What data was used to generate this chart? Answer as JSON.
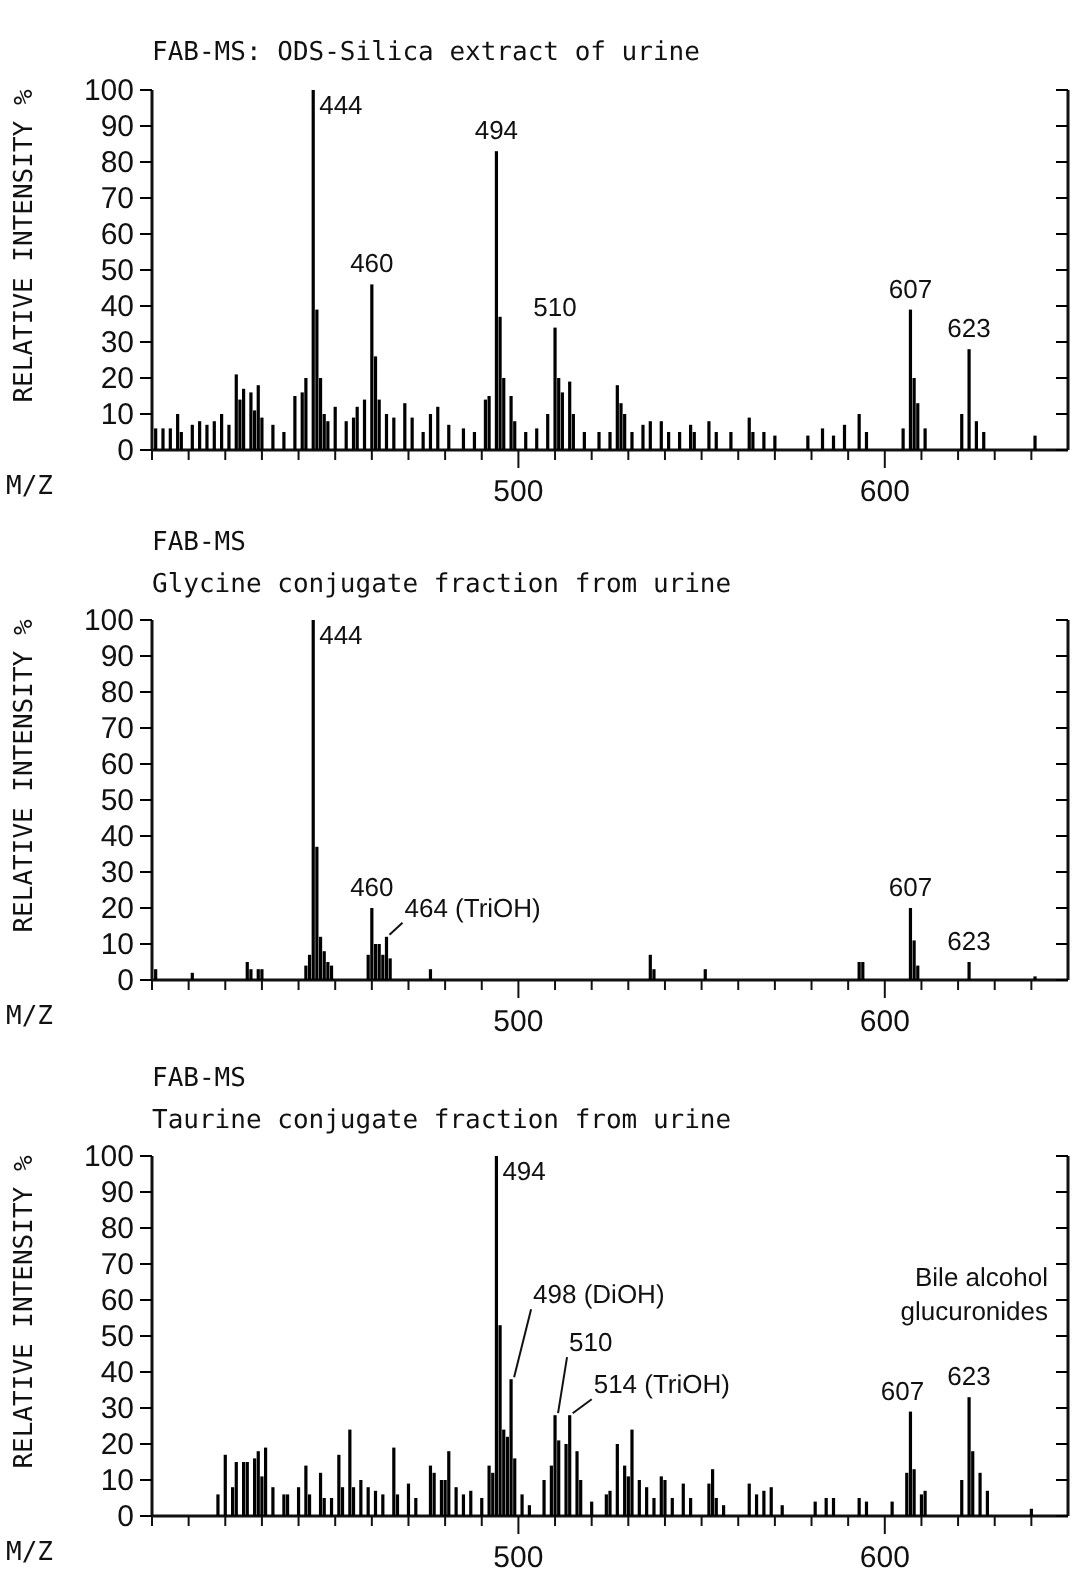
{
  "chart_data": [
    {
      "type": "bar",
      "title": "FAB-MS: ODS-Silica extract of urine",
      "xlabel": "M/Z",
      "ylabel": "RELATIVE INTENSITY %",
      "x": [
        401,
        403,
        405,
        407,
        408,
        411,
        413,
        415,
        417,
        419,
        421,
        423,
        424,
        425,
        427,
        428,
        429,
        430,
        433,
        436,
        439,
        441,
        442,
        444,
        445,
        446,
        447,
        448,
        450,
        453,
        455,
        456,
        458,
        460,
        461,
        462,
        464,
        466,
        469,
        471,
        474,
        476,
        478,
        481,
        485,
        488,
        491,
        492,
        494,
        495,
        496,
        498,
        499,
        502,
        505,
        508,
        510,
        511,
        512,
        514,
        515,
        518,
        522,
        525,
        527,
        528,
        529,
        531,
        534,
        536,
        539,
        541,
        544,
        547,
        548,
        552,
        554,
        558,
        563,
        564,
        567,
        570,
        579,
        583,
        586,
        589,
        593,
        595,
        605,
        607,
        608,
        609,
        611,
        621,
        623,
        625,
        627,
        641
      ],
      "values": [
        6,
        6,
        6,
        10,
        5,
        7,
        8,
        7,
        8,
        10,
        7,
        21,
        14,
        17,
        16,
        11,
        18,
        9,
        7,
        5,
        15,
        16,
        20,
        100,
        39,
        20,
        10,
        8,
        12,
        8,
        9,
        12,
        14,
        46,
        26,
        14,
        10,
        9,
        13,
        9,
        5,
        10,
        12,
        7,
        6,
        5,
        14,
        15,
        83,
        37,
        20,
        15,
        8,
        5,
        6,
        10,
        34,
        20,
        16,
        19,
        10,
        5,
        5,
        5,
        18,
        13,
        10,
        5,
        7,
        8,
        8,
        5,
        5,
        7,
        5,
        8,
        5,
        5,
        9,
        5,
        5,
        4,
        4,
        6,
        4,
        7,
        10,
        5,
        6,
        39,
        20,
        13,
        6,
        10,
        28,
        8,
        5,
        4
      ],
      "color": "#000000",
      "xlim": [
        400,
        650
      ],
      "ylim": [
        0,
        100
      ],
      "xticks": [
        {
          "value": 400,
          "label": null
        },
        {
          "value": 410,
          "label": null
        },
        {
          "value": 420,
          "label": null
        },
        {
          "value": 430,
          "label": null
        },
        {
          "value": 440,
          "label": null
        },
        {
          "value": 450,
          "label": null
        },
        {
          "value": 460,
          "label": null
        },
        {
          "value": 470,
          "label": null
        },
        {
          "value": 480,
          "label": null
        },
        {
          "value": 490,
          "label": null
        },
        {
          "value": 500,
          "label": "500"
        },
        {
          "value": 510,
          "label": null
        },
        {
          "value": 520,
          "label": null
        },
        {
          "value": 530,
          "label": null
        },
        {
          "value": 540,
          "label": null
        },
        {
          "value": 550,
          "label": null
        },
        {
          "value": 560,
          "label": null
        },
        {
          "value": 570,
          "label": null
        },
        {
          "value": 580,
          "label": null
        },
        {
          "value": 590,
          "label": null
        },
        {
          "value": 600,
          "label": "600"
        },
        {
          "value": 610,
          "label": null
        },
        {
          "value": 620,
          "label": null
        },
        {
          "value": 630,
          "label": null
        },
        {
          "value": 640,
          "label": null
        }
      ],
      "yticks": [
        0,
        10,
        20,
        30,
        40,
        50,
        60,
        70,
        80,
        90,
        100
      ],
      "annotations": [
        {
          "text": "444",
          "x": 444,
          "y": 100
        },
        {
          "text": "460",
          "x": 460,
          "y": 46
        },
        {
          "text": "494",
          "x": 494,
          "y": 83
        },
        {
          "text": "510",
          "x": 510,
          "y": 34
        },
        {
          "text": "607",
          "x": 607,
          "y": 39
        },
        {
          "text": "623",
          "x": 623,
          "y": 28
        }
      ]
    },
    {
      "type": "bar",
      "title": "FAB-MS",
      "subtitle": "Glycine conjugate fraction from urine",
      "xlabel": "M/Z",
      "ylabel": "RELATIVE INTENSITY %",
      "x": [
        401,
        411,
        426,
        427,
        429,
        430,
        442,
        443,
        444,
        445,
        446,
        447,
        448,
        449,
        459,
        460,
        461,
        462,
        463,
        464,
        465,
        476,
        536,
        537,
        551,
        593,
        594,
        607,
        608,
        609,
        623,
        641
      ],
      "values": [
        3,
        2,
        5,
        3,
        3,
        3,
        4,
        7,
        100,
        37,
        12,
        8,
        5,
        4,
        7,
        20,
        10,
        10,
        7,
        12,
        6,
        3,
        7,
        3,
        3,
        5,
        5,
        20,
        11,
        4,
        5,
        1
      ],
      "color": "#000000",
      "xlim": [
        400,
        650
      ],
      "ylim": [
        0,
        100
      ],
      "xticks": [
        {
          "value": 400,
          "label": null
        },
        {
          "value": 410,
          "label": null
        },
        {
          "value": 420,
          "label": null
        },
        {
          "value": 430,
          "label": null
        },
        {
          "value": 440,
          "label": null
        },
        {
          "value": 450,
          "label": null
        },
        {
          "value": 460,
          "label": null
        },
        {
          "value": 470,
          "label": null
        },
        {
          "value": 480,
          "label": null
        },
        {
          "value": 490,
          "label": null
        },
        {
          "value": 500,
          "label": "500"
        },
        {
          "value": 510,
          "label": null
        },
        {
          "value": 520,
          "label": null
        },
        {
          "value": 530,
          "label": null
        },
        {
          "value": 540,
          "label": null
        },
        {
          "value": 550,
          "label": null
        },
        {
          "value": 560,
          "label": null
        },
        {
          "value": 570,
          "label": null
        },
        {
          "value": 580,
          "label": null
        },
        {
          "value": 590,
          "label": null
        },
        {
          "value": 600,
          "label": "600"
        },
        {
          "value": 610,
          "label": null
        },
        {
          "value": 620,
          "label": null
        },
        {
          "value": 630,
          "label": null
        },
        {
          "value": 640,
          "label": null
        }
      ],
      "yticks": [
        0,
        10,
        20,
        30,
        40,
        50,
        60,
        70,
        80,
        90,
        100
      ],
      "annotations": [
        {
          "text": "444",
          "x": 444,
          "y": 100
        },
        {
          "text": "460",
          "x": 460,
          "y": 20
        },
        {
          "text": "464 (TriOH)",
          "x": 464,
          "y": 12
        },
        {
          "text": "607",
          "x": 607,
          "y": 20
        },
        {
          "text": "623",
          "x": 623,
          "y": 5
        }
      ]
    },
    {
      "type": "bar",
      "title": "FAB-MS",
      "subtitle": "Taurine conjugate fraction from urine",
      "xlabel": "M/Z",
      "ylabel": "RELATIVE INTENSITY %",
      "x": [
        418,
        420,
        422,
        423,
        425,
        426,
        428,
        429,
        430,
        431,
        433,
        436,
        437,
        440,
        442,
        443,
        446,
        447,
        449,
        451,
        452,
        454,
        455,
        457,
        459,
        461,
        463,
        466,
        467,
        470,
        472,
        476,
        477,
        479,
        480,
        481,
        483,
        485,
        487,
        490,
        492,
        493,
        494,
        495,
        496,
        497,
        498,
        499,
        501,
        503,
        507,
        509,
        510,
        511,
        513,
        514,
        516,
        517,
        520,
        524,
        525,
        527,
        529,
        530,
        531,
        533,
        535,
        537,
        539,
        540,
        542,
        545,
        547,
        552,
        553,
        554,
        556,
        563,
        565,
        567,
        569,
        572,
        581,
        584,
        586,
        593,
        595,
        602,
        606,
        607,
        608,
        610,
        611,
        621,
        623,
        624,
        626,
        628,
        640
      ],
      "values": [
        6,
        17,
        8,
        15,
        15,
        15,
        16,
        18,
        11,
        19,
        8,
        6,
        6,
        8,
        14,
        6,
        12,
        5,
        5,
        17,
        8,
        24,
        8,
        10,
        8,
        7,
        6,
        19,
        6,
        9,
        5,
        14,
        12,
        10,
        10,
        18,
        8,
        6,
        7,
        5,
        14,
        12,
        100,
        53,
        24,
        22,
        38,
        16,
        6,
        3,
        10,
        14,
        28,
        21,
        20,
        28,
        18,
        10,
        4,
        6,
        7,
        20,
        14,
        11,
        24,
        10,
        8,
        5,
        11,
        10,
        5,
        9,
        5,
        9,
        13,
        5,
        3,
        9,
        6,
        7,
        8,
        3,
        4,
        5,
        5,
        5,
        4,
        4,
        12,
        29,
        13,
        6,
        7,
        10,
        33,
        18,
        12,
        7,
        2
      ],
      "color": "#000000",
      "xlim": [
        400,
        650
      ],
      "ylim": [
        0,
        100
      ],
      "xticks": [
        {
          "value": 400,
          "label": null
        },
        {
          "value": 410,
          "label": null
        },
        {
          "value": 420,
          "label": null
        },
        {
          "value": 430,
          "label": null
        },
        {
          "value": 440,
          "label": null
        },
        {
          "value": 450,
          "label": null
        },
        {
          "value": 460,
          "label": null
        },
        {
          "value": 470,
          "label": null
        },
        {
          "value": 480,
          "label": null
        },
        {
          "value": 490,
          "label": null
        },
        {
          "value": 500,
          "label": "500"
        },
        {
          "value": 510,
          "label": null
        },
        {
          "value": 520,
          "label": null
        },
        {
          "value": 530,
          "label": null
        },
        {
          "value": 540,
          "label": null
        },
        {
          "value": 550,
          "label": null
        },
        {
          "value": 560,
          "label": null
        },
        {
          "value": 570,
          "label": null
        },
        {
          "value": 580,
          "label": null
        },
        {
          "value": 590,
          "label": null
        },
        {
          "value": 600,
          "label": "600"
        },
        {
          "value": 610,
          "label": null
        },
        {
          "value": 620,
          "label": null
        },
        {
          "value": 630,
          "label": null
        },
        {
          "value": 640,
          "label": null
        }
      ],
      "yticks": [
        0,
        10,
        20,
        30,
        40,
        50,
        60,
        70,
        80,
        90,
        100
      ],
      "annotations": [
        {
          "text": "494",
          "x": 494,
          "y": 100
        },
        {
          "text": "498 (DiOH)",
          "x": 498,
          "y": 38
        },
        {
          "text": "510",
          "x": 510,
          "y": 28
        },
        {
          "text": "514 (TriOH)",
          "x": 514,
          "y": 28
        },
        "Bile alcohol glucuronides",
        {
          "text": "607",
          "x": 607,
          "y": 29
        },
        {
          "text": "623",
          "x": 623,
          "y": 33
        }
      ]
    }
  ]
}
